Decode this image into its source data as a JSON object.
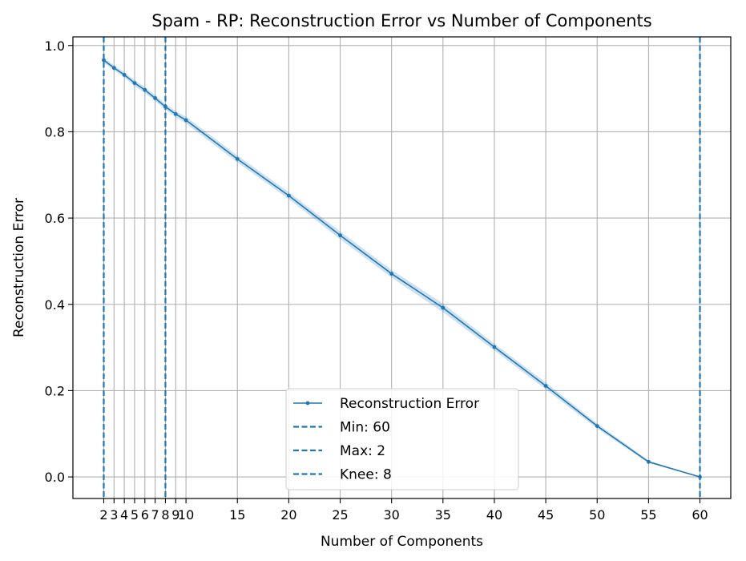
{
  "chart_data": {
    "type": "line",
    "title": "Spam - RP: Reconstruction Error vs Number of Components",
    "xlabel": "Number of Components",
    "ylabel": "Reconstruction Error",
    "xlim": [
      -1,
      63
    ],
    "ylim": [
      -0.05,
      1.02
    ],
    "xticks": [
      2,
      3,
      4,
      5,
      6,
      7,
      8,
      9,
      10,
      15,
      20,
      25,
      30,
      35,
      40,
      45,
      50,
      55,
      60
    ],
    "xtick_labels": [
      "2",
      "3",
      "4",
      "5",
      "6",
      "7",
      "8",
      "9",
      "10",
      "15",
      "20",
      "25",
      "30",
      "35",
      "40",
      "45",
      "50",
      "55",
      "60"
    ],
    "yticks": [
      0.0,
      0.2,
      0.4,
      0.6,
      0.8,
      1.0
    ],
    "ytick_labels": [
      "0.0",
      "0.2",
      "0.4",
      "0.6",
      "0.8",
      "1.0"
    ],
    "grid": true,
    "legend_position": "bottom-center",
    "series": [
      {
        "name": "Reconstruction Error",
        "color": "#1f77b4",
        "x": [
          2,
          3,
          4,
          5,
          6,
          7,
          8,
          9,
          10,
          15,
          20,
          25,
          30,
          35,
          40,
          45,
          50,
          55,
          60
        ],
        "y": [
          0.966,
          0.948,
          0.932,
          0.913,
          0.897,
          0.878,
          0.858,
          0.841,
          0.827,
          0.737,
          0.652,
          0.56,
          0.471,
          0.392,
          0.301,
          0.211,
          0.118,
          0.035,
          0.0
        ],
        "band": [
          0.006,
          0.006,
          0.006,
          0.007,
          0.007,
          0.007,
          0.007,
          0.007,
          0.008,
          0.008,
          0.008,
          0.009,
          0.009,
          0.01,
          0.008,
          0.008,
          0.006,
          0.003,
          0.0
        ]
      }
    ],
    "vlines": [
      {
        "name": "Min: 60",
        "x": 60,
        "color": "#1f77b4"
      },
      {
        "name": "Max: 2",
        "x": 2,
        "color": "#1f77b4"
      },
      {
        "name": "Knee: 8",
        "x": 8,
        "color": "#1f77b4"
      }
    ]
  }
}
